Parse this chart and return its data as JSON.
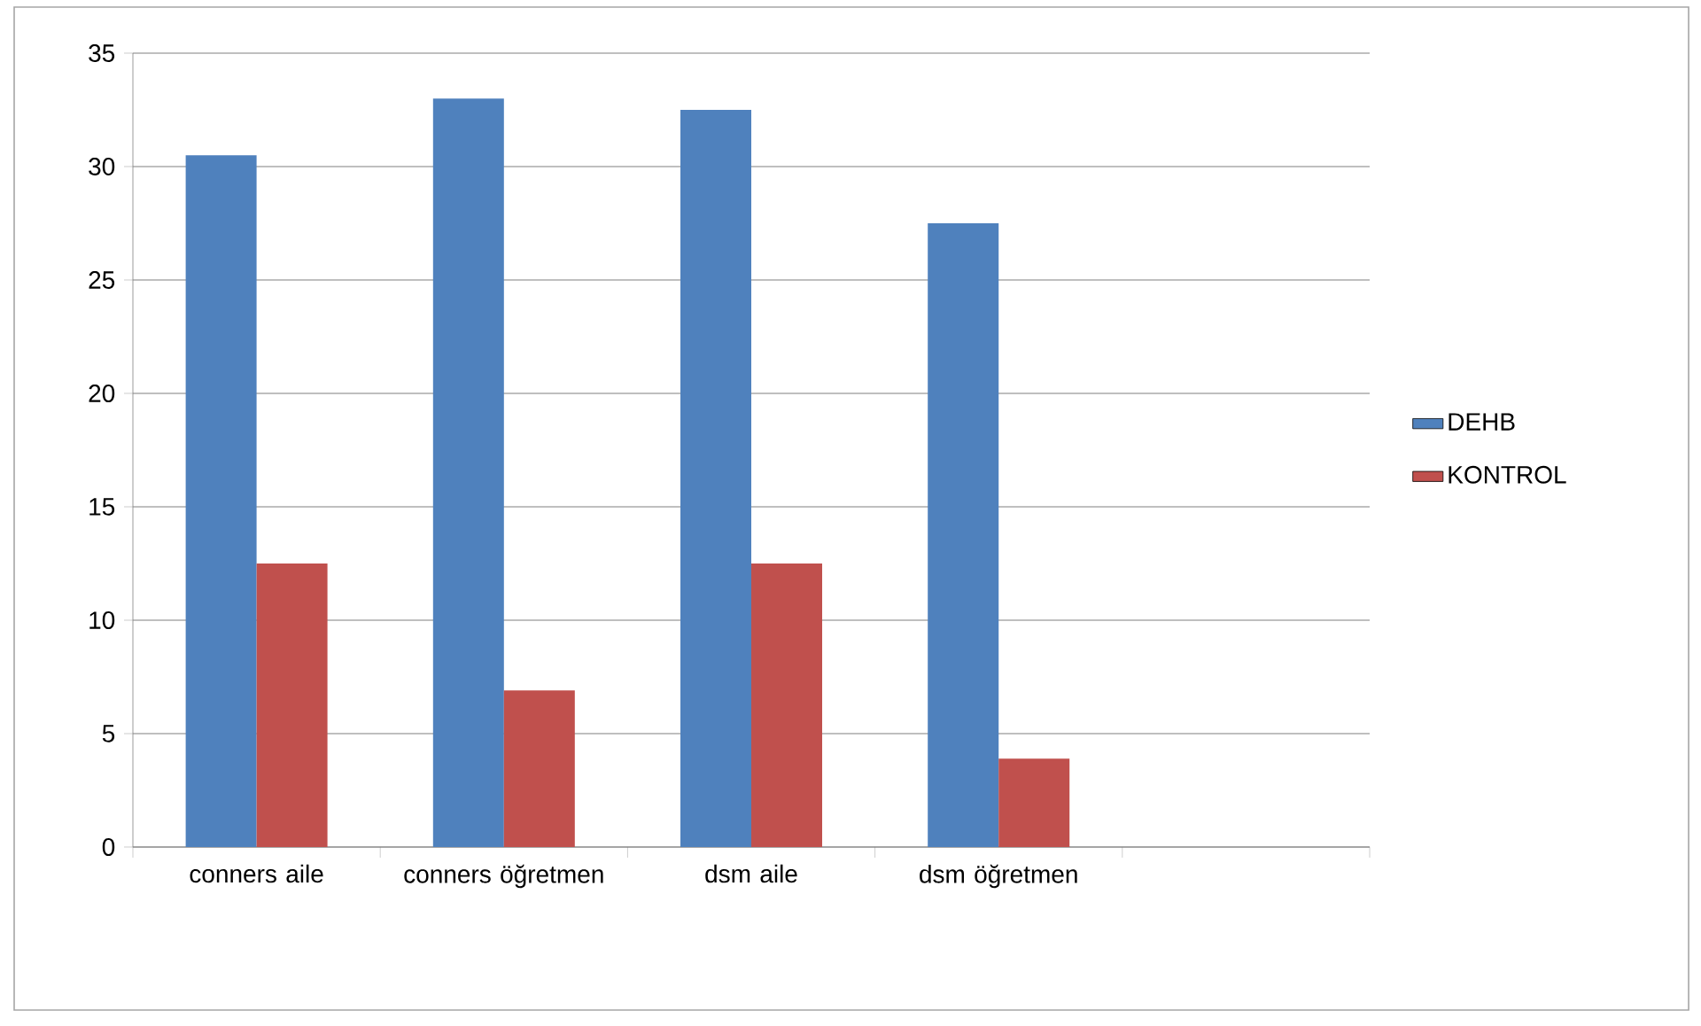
{
  "chart_data": {
    "type": "bar",
    "categories": [
      "conners aile",
      "conners öğretmen",
      "dsm aile",
      "dsm öğretmen",
      null
    ],
    "series": [
      {
        "name": "DEHB",
        "color": "#4f81bd",
        "values": [
          30.5,
          33,
          32.5,
          27.5,
          null
        ]
      },
      {
        "name": "KONTROL",
        "color": "#c0504d",
        "values": [
          12.5,
          6.9,
          12.5,
          3.9,
          null
        ]
      }
    ],
    "ylim": [
      0,
      35
    ],
    "yticks": [
      0,
      5,
      10,
      15,
      20,
      25,
      30,
      35
    ],
    "grid": "y",
    "legend": "right"
  }
}
